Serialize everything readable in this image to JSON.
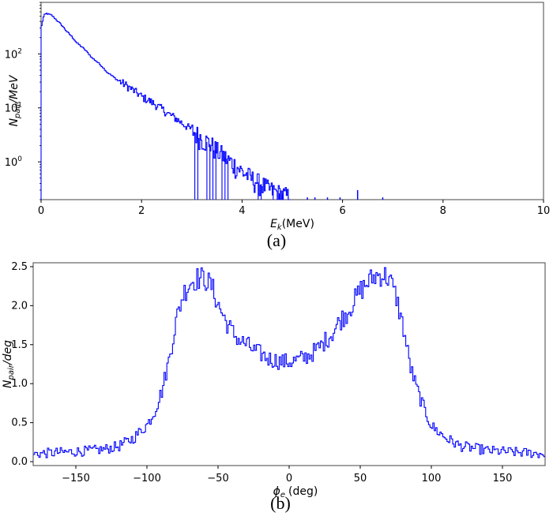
{
  "chart_data": [
    {
      "type": "line",
      "panel_label": "(a)",
      "xlabel": "E",
      "xlabel_sub": "k",
      "xlabel_unit": "(MeV)",
      "ylabel": "N",
      "ylabel_sub": "pair",
      "ylabel_unit": "/MeV",
      "xlim": [
        0,
        10
      ],
      "ylim": [
        0.2,
        900
      ],
      "yscale": "log",
      "xticks": [
        "0",
        "2",
        "4",
        "6",
        "8",
        "10"
      ],
      "yticks": [
        {
          "base": "10",
          "exp": "0"
        },
        {
          "base": "10",
          "exp": "1"
        },
        {
          "base": "10",
          "exp": "2"
        }
      ],
      "grid": false,
      "color": "#0000ff",
      "x": [
        0.0,
        0.05,
        0.1,
        0.2,
        0.3,
        0.5,
        0.7,
        1.0,
        1.3,
        1.5,
        1.8,
        2.0,
        2.3,
        2.5,
        2.8,
        3.0,
        3.2,
        3.4,
        3.5,
        3.7,
        3.9,
        4.0,
        4.2,
        4.4,
        4.5,
        4.7,
        4.9
      ],
      "y": [
        330,
        520,
        560,
        520,
        420,
        260,
        160,
        85,
        46,
        33,
        22,
        16,
        11,
        8.0,
        5.2,
        3.8,
        2.7,
        2.0,
        1.6,
        1.1,
        0.8,
        0.65,
        0.48,
        0.38,
        0.32,
        0.27,
        0.23
      ],
      "spikes_x": [
        5.3,
        5.45,
        5.7,
        5.95,
        6.3,
        6.8
      ],
      "spikes_y": [
        0.22,
        0.22,
        0.22,
        0.22,
        0.3,
        0.22
      ]
    },
    {
      "type": "line",
      "panel_label": "(b)",
      "xlabel": "ϕ",
      "xlabel_sub": "e",
      "xlabel_unit": "(deg)",
      "ylabel": "N",
      "ylabel_sub": "pair",
      "ylabel_unit": "/deg",
      "xlim": [
        -180,
        180
      ],
      "ylim": [
        -0.05,
        2.55
      ],
      "xticks": [
        "-150",
        "-100",
        "-50",
        "0",
        "50",
        "100",
        "150"
      ],
      "xtick_values": [
        -150,
        -100,
        -50,
        0,
        50,
        100,
        150
      ],
      "yticks": [
        "0.0",
        "0.5",
        "1.0",
        "1.5",
        "2.0",
        "2.5"
      ],
      "ytick_values": [
        0.0,
        0.5,
        1.0,
        1.5,
        2.0,
        2.5
      ],
      "grid": false,
      "color": "#0000ff",
      "x": [
        -180,
        -160,
        -140,
        -130,
        -120,
        -110,
        -100,
        -95,
        -90,
        -85,
        -80,
        -75,
        -70,
        -65,
        -60,
        -55,
        -50,
        -45,
        -40,
        -35,
        -30,
        -25,
        -20,
        -15,
        -10,
        -5,
        0,
        5,
        10,
        15,
        20,
        25,
        30,
        35,
        40,
        45,
        50,
        55,
        60,
        65,
        70,
        75,
        80,
        85,
        90,
        95,
        100,
        110,
        120,
        130,
        140,
        160,
        180
      ],
      "y": [
        0.1,
        0.12,
        0.14,
        0.16,
        0.2,
        0.3,
        0.48,
        0.65,
        0.9,
        1.3,
        1.8,
        2.15,
        2.3,
        2.35,
        2.35,
        2.25,
        2.0,
        1.8,
        1.65,
        1.55,
        1.5,
        1.42,
        1.38,
        1.32,
        1.3,
        1.28,
        1.28,
        1.3,
        1.33,
        1.38,
        1.45,
        1.55,
        1.65,
        1.8,
        1.9,
        2.05,
        2.2,
        2.3,
        2.38,
        2.4,
        2.35,
        2.1,
        1.7,
        1.2,
        0.9,
        0.65,
        0.45,
        0.3,
        0.2,
        0.17,
        0.14,
        0.12,
        0.1
      ]
    }
  ]
}
